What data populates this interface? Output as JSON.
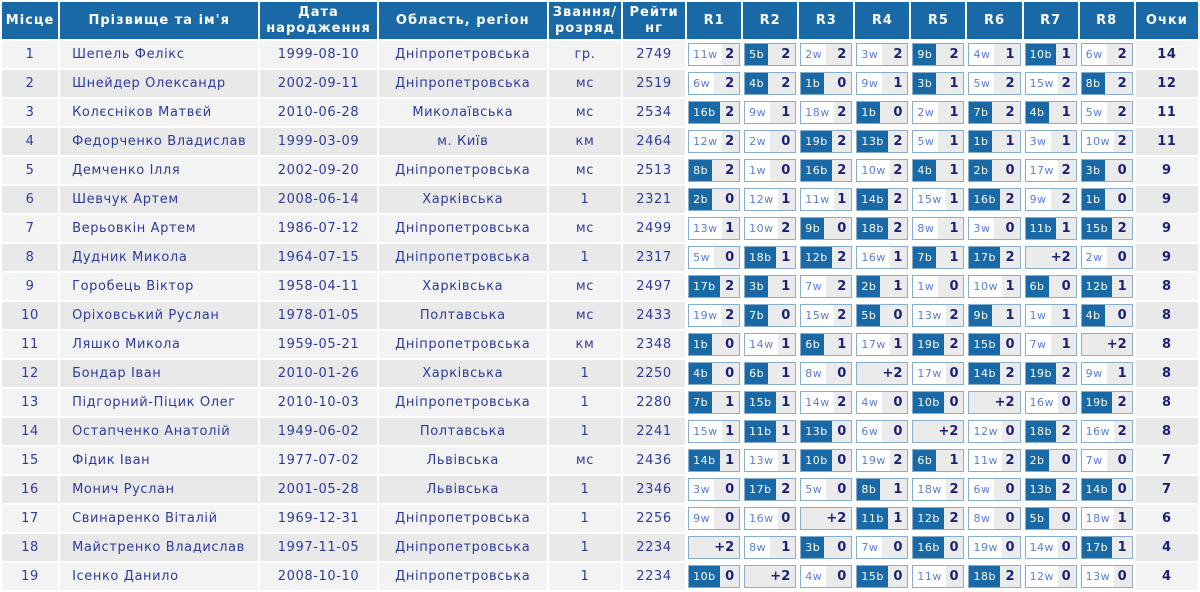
{
  "colors": {
    "header_bg": "#1a69a7",
    "black_badge_bg": "#1a69a7",
    "round_box_border": "#86aecf",
    "round_box_bg": "#ebebeb",
    "row_odd_bg": "#f3f3f3",
    "row_even_bg": "#e9e9e9",
    "text_navy": "#2e3b9d",
    "result_navy": "#1a1f78",
    "white_chip_text": "#5a7ed8"
  },
  "table": {
    "headers": [
      "Місце",
      "Прізвище та ім'я",
      "Дата народження",
      "Область, регіон",
      "Звання/розряд",
      "Рейтинг",
      "R1",
      "R2",
      "R3",
      "R4",
      "R5",
      "R6",
      "R7",
      "R8",
      "Очки"
    ],
    "players": [
      {
        "place": "1",
        "name": "Шепель Фелікс",
        "birth": "1999-08-10",
        "region": "Дніпропетровська",
        "title": "гр.",
        "rating": "2749",
        "points": "14",
        "rounds": [
          {
            "o": "11w",
            "r": "2"
          },
          {
            "o": "5b",
            "r": "2"
          },
          {
            "o": "2w",
            "r": "2"
          },
          {
            "o": "3w",
            "r": "2"
          },
          {
            "o": "9b",
            "r": "2"
          },
          {
            "o": "4w",
            "r": "1"
          },
          {
            "o": "10b",
            "r": "1"
          },
          {
            "o": "6w",
            "r": "2"
          }
        ]
      },
      {
        "place": "2",
        "name": "Шнейдер Олександр",
        "birth": "2002-09-11",
        "region": "Дніпропетровська",
        "title": "мс",
        "rating": "2519",
        "points": "12",
        "rounds": [
          {
            "o": "6w",
            "r": "2"
          },
          {
            "o": "4b",
            "r": "2"
          },
          {
            "o": "1b",
            "r": "0"
          },
          {
            "o": "9w",
            "r": "1"
          },
          {
            "o": "3b",
            "r": "1"
          },
          {
            "o": "5w",
            "r": "2"
          },
          {
            "o": "15w",
            "r": "2"
          },
          {
            "o": "8b",
            "r": "2"
          }
        ]
      },
      {
        "place": "3",
        "name": "Колєсніков Матвєй",
        "birth": "2010-06-28",
        "region": "Миколаївська",
        "title": "мс",
        "rating": "2534",
        "points": "11",
        "rounds": [
          {
            "o": "16b",
            "r": "2"
          },
          {
            "o": "9w",
            "r": "1"
          },
          {
            "o": "18w",
            "r": "2"
          },
          {
            "o": "1b",
            "r": "0"
          },
          {
            "o": "2w",
            "r": "1"
          },
          {
            "o": "7b",
            "r": "2"
          },
          {
            "o": "4b",
            "r": "1"
          },
          {
            "o": "5w",
            "r": "2"
          }
        ]
      },
      {
        "place": "4",
        "name": "Федорченко Владислав",
        "birth": "1999-03-09",
        "region": "м. Київ",
        "title": "км",
        "rating": "2464",
        "points": "11",
        "rounds": [
          {
            "o": "12w",
            "r": "2"
          },
          {
            "o": "2w",
            "r": "0"
          },
          {
            "o": "19b",
            "r": "2"
          },
          {
            "o": "13b",
            "r": "2"
          },
          {
            "o": "5w",
            "r": "1"
          },
          {
            "o": "1b",
            "r": "1"
          },
          {
            "o": "3w",
            "r": "1"
          },
          {
            "o": "10w",
            "r": "2"
          }
        ]
      },
      {
        "place": "5",
        "name": "Демченко Ілля",
        "birth": "2002-09-20",
        "region": "Дніпропетровська",
        "title": "мс",
        "rating": "2513",
        "points": "9",
        "rounds": [
          {
            "o": "8b",
            "r": "2"
          },
          {
            "o": "1w",
            "r": "0"
          },
          {
            "o": "16b",
            "r": "2"
          },
          {
            "o": "10w",
            "r": "2"
          },
          {
            "o": "4b",
            "r": "1"
          },
          {
            "o": "2b",
            "r": "0"
          },
          {
            "o": "17w",
            "r": "2"
          },
          {
            "o": "3b",
            "r": "0"
          }
        ]
      },
      {
        "place": "6",
        "name": "Шевчук Артем",
        "birth": "2008-06-14",
        "region": "Харківська",
        "title": "1",
        "rating": "2321",
        "points": "9",
        "rounds": [
          {
            "o": "2b",
            "r": "0"
          },
          {
            "o": "12w",
            "r": "1"
          },
          {
            "o": "11w",
            "r": "1"
          },
          {
            "o": "14b",
            "r": "2"
          },
          {
            "o": "15w",
            "r": "1"
          },
          {
            "o": "16b",
            "r": "2"
          },
          {
            "o": "9w",
            "r": "2"
          },
          {
            "o": "1b",
            "r": "0"
          }
        ]
      },
      {
        "place": "7",
        "name": "Верьовкін Артем",
        "birth": "1986-07-12",
        "region": "Дніпропетровська",
        "title": "мс",
        "rating": "2499",
        "points": "9",
        "rounds": [
          {
            "o": "13w",
            "r": "1"
          },
          {
            "o": "10w",
            "r": "2"
          },
          {
            "o": "9b",
            "r": "0"
          },
          {
            "o": "18b",
            "r": "2"
          },
          {
            "o": "8w",
            "r": "1"
          },
          {
            "o": "3w",
            "r": "0"
          },
          {
            "o": "11b",
            "r": "1"
          },
          {
            "o": "15b",
            "r": "2"
          }
        ]
      },
      {
        "place": "8",
        "name": "Дудник Микола",
        "birth": "1964-07-15",
        "region": "Дніпропетровська",
        "title": "1",
        "rating": "2317",
        "points": "9",
        "rounds": [
          {
            "o": "5w",
            "r": "0"
          },
          {
            "o": "18b",
            "r": "1"
          },
          {
            "o": "12b",
            "r": "2"
          },
          {
            "o": "16w",
            "r": "1"
          },
          {
            "o": "7b",
            "r": "1"
          },
          {
            "o": "17b",
            "r": "2"
          },
          {
            "o": "",
            "r": "+2"
          },
          {
            "o": "2w",
            "r": "0"
          }
        ]
      },
      {
        "place": "9",
        "name": "Горобець Віктор",
        "birth": "1958-04-11",
        "region": "Харківська",
        "title": "мс",
        "rating": "2497",
        "points": "8",
        "rounds": [
          {
            "o": "17b",
            "r": "2"
          },
          {
            "o": "3b",
            "r": "1"
          },
          {
            "o": "7w",
            "r": "2"
          },
          {
            "o": "2b",
            "r": "1"
          },
          {
            "o": "1w",
            "r": "0"
          },
          {
            "o": "10w",
            "r": "1"
          },
          {
            "o": "6b",
            "r": "0"
          },
          {
            "o": "12b",
            "r": "1"
          }
        ]
      },
      {
        "place": "10",
        "name": "Оріховський Руслан",
        "birth": "1978-01-05",
        "region": "Полтавська",
        "title": "мс",
        "rating": "2433",
        "points": "8",
        "rounds": [
          {
            "o": "19w",
            "r": "2"
          },
          {
            "o": "7b",
            "r": "0"
          },
          {
            "o": "15w",
            "r": "2"
          },
          {
            "o": "5b",
            "r": "0"
          },
          {
            "o": "13w",
            "r": "2"
          },
          {
            "o": "9b",
            "r": "1"
          },
          {
            "o": "1w",
            "r": "1"
          },
          {
            "o": "4b",
            "r": "0"
          }
        ]
      },
      {
        "place": "11",
        "name": "Ляшко Микола",
        "birth": "1959-05-21",
        "region": "Дніпропетровська",
        "title": "км",
        "rating": "2348",
        "points": "8",
        "rounds": [
          {
            "o": "1b",
            "r": "0"
          },
          {
            "o": "14w",
            "r": "1"
          },
          {
            "o": "6b",
            "r": "1"
          },
          {
            "o": "17w",
            "r": "1"
          },
          {
            "o": "19b",
            "r": "2"
          },
          {
            "o": "15b",
            "r": "0"
          },
          {
            "o": "7w",
            "r": "1"
          },
          {
            "o": "",
            "r": "+2"
          }
        ]
      },
      {
        "place": "12",
        "name": "Бондар Іван",
        "birth": "2010-01-26",
        "region": "Харківська",
        "title": "1",
        "rating": "2250",
        "points": "8",
        "rounds": [
          {
            "o": "4b",
            "r": "0"
          },
          {
            "o": "6b",
            "r": "1"
          },
          {
            "o": "8w",
            "r": "0"
          },
          {
            "o": "",
            "r": "+2"
          },
          {
            "o": "17w",
            "r": "0"
          },
          {
            "o": "14b",
            "r": "2"
          },
          {
            "o": "19b",
            "r": "2"
          },
          {
            "o": "9w",
            "r": "1"
          }
        ]
      },
      {
        "place": "13",
        "name": "Підгорний-Піцик Олег",
        "birth": "2010-10-03",
        "region": "Дніпропетровська",
        "title": "1",
        "rating": "2280",
        "points": "8",
        "rounds": [
          {
            "o": "7b",
            "r": "1"
          },
          {
            "o": "15b",
            "r": "1"
          },
          {
            "o": "14w",
            "r": "2"
          },
          {
            "o": "4w",
            "r": "0"
          },
          {
            "o": "10b",
            "r": "0"
          },
          {
            "o": "",
            "r": "+2"
          },
          {
            "o": "16w",
            "r": "0"
          },
          {
            "o": "19b",
            "r": "2"
          }
        ]
      },
      {
        "place": "14",
        "name": "Остапченко Анатолій",
        "birth": "1949-06-02",
        "region": "Полтавська",
        "title": "1",
        "rating": "2241",
        "points": "8",
        "rounds": [
          {
            "o": "15w",
            "r": "1"
          },
          {
            "o": "11b",
            "r": "1"
          },
          {
            "o": "13b",
            "r": "0"
          },
          {
            "o": "6w",
            "r": "0"
          },
          {
            "o": "",
            "r": "+2"
          },
          {
            "o": "12w",
            "r": "0"
          },
          {
            "o": "18b",
            "r": "2"
          },
          {
            "o": "16w",
            "r": "2"
          }
        ]
      },
      {
        "place": "15",
        "name": "Фідик Іван",
        "birth": "1977-07-02",
        "region": "Львівська",
        "title": "мс",
        "rating": "2436",
        "points": "7",
        "rounds": [
          {
            "o": "14b",
            "r": "1"
          },
          {
            "o": "13w",
            "r": "1"
          },
          {
            "o": "10b",
            "r": "0"
          },
          {
            "o": "19w",
            "r": "2"
          },
          {
            "o": "6b",
            "r": "1"
          },
          {
            "o": "11w",
            "r": "2"
          },
          {
            "o": "2b",
            "r": "0"
          },
          {
            "o": "7w",
            "r": "0"
          }
        ]
      },
      {
        "place": "16",
        "name": "Монич Руслан",
        "birth": "2001-05-28",
        "region": "Львівська",
        "title": "1",
        "rating": "2346",
        "points": "7",
        "rounds": [
          {
            "o": "3w",
            "r": "0"
          },
          {
            "o": "17b",
            "r": "2"
          },
          {
            "o": "5w",
            "r": "0"
          },
          {
            "o": "8b",
            "r": "1"
          },
          {
            "o": "18w",
            "r": "2"
          },
          {
            "o": "6w",
            "r": "0"
          },
          {
            "o": "13b",
            "r": "2"
          },
          {
            "o": "14b",
            "r": "0"
          }
        ]
      },
      {
        "place": "17",
        "name": "Свинаренко Віталій",
        "birth": "1969-12-31",
        "region": "Дніпропетровська",
        "title": "1",
        "rating": "2256",
        "points": "6",
        "rounds": [
          {
            "o": "9w",
            "r": "0"
          },
          {
            "o": "16w",
            "r": "0"
          },
          {
            "o": "",
            "r": "+2"
          },
          {
            "o": "11b",
            "r": "1"
          },
          {
            "o": "12b",
            "r": "2"
          },
          {
            "o": "8w",
            "r": "0"
          },
          {
            "o": "5b",
            "r": "0"
          },
          {
            "o": "18w",
            "r": "1"
          }
        ]
      },
      {
        "place": "18",
        "name": "Майстренко Владислав",
        "birth": "1997-11-05",
        "region": "Дніпропетровська",
        "title": "1",
        "rating": "2234",
        "points": "4",
        "rounds": [
          {
            "o": "",
            "r": "+2"
          },
          {
            "o": "8w",
            "r": "1"
          },
          {
            "o": "3b",
            "r": "0"
          },
          {
            "o": "7w",
            "r": "0"
          },
          {
            "o": "16b",
            "r": "0"
          },
          {
            "o": "19w",
            "r": "0"
          },
          {
            "o": "14w",
            "r": "0"
          },
          {
            "o": "17b",
            "r": "1"
          }
        ]
      },
      {
        "place": "19",
        "name": "Ісенко Данило",
        "birth": "2008-10-10",
        "region": "Дніпропетровська",
        "title": "1",
        "rating": "2234",
        "points": "4",
        "rounds": [
          {
            "o": "10b",
            "r": "0"
          },
          {
            "o": "",
            "r": "+2"
          },
          {
            "o": "4w",
            "r": "0"
          },
          {
            "o": "15b",
            "r": "0"
          },
          {
            "o": "11w",
            "r": "0"
          },
          {
            "o": "18b",
            "r": "2"
          },
          {
            "o": "12w",
            "r": "0"
          },
          {
            "o": "13w",
            "r": "0"
          }
        ]
      }
    ]
  }
}
